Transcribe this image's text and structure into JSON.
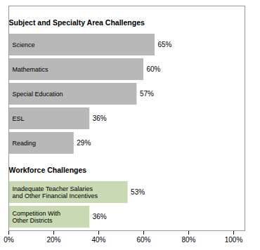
{
  "chart_data": {
    "type": "bar",
    "orientation": "horizontal",
    "categories": [
      "Competition With\nOther Districts",
      "Inadequate Teacher Salaries\nand Other Financial Incentives",
      "Reading",
      "ESL",
      "Special Education",
      "Mathematics",
      "Science"
    ],
    "values": [
      36,
      53,
      29,
      36,
      57,
      60,
      65
    ],
    "value_labels": [
      "36%",
      "53%",
      "29%",
      "36%",
      "57%",
      "60%",
      "65%"
    ],
    "colors": [
      "#c8d9b4",
      "#c8d9b4",
      "#b8b8b8",
      "#b8b8b8",
      "#b8b8b8",
      "#b8b8b8",
      "#b8b8b8"
    ],
    "data_labels": true,
    "annotations": [
      {
        "text": "Subject and Specialty Area Challenges",
        "category": "Science"
      },
      {
        "text": "Workforce Challenges",
        "category": "Inadequate Teacher Salaries\nand Other Financial Incentives"
      }
    ],
    "xlim": [
      0,
      105
    ],
    "xticks": [
      {
        "value": 0,
        "label": "0%"
      },
      {
        "value": 20,
        "label": "20%"
      },
      {
        "value": 40,
        "label": "40%"
      },
      {
        "value": 60,
        "label": "60%"
      },
      {
        "value": 80,
        "label": "80%"
      },
      {
        "value": 100,
        "label": "100%"
      }
    ],
    "tick_labels": "x",
    "grid": false
  }
}
